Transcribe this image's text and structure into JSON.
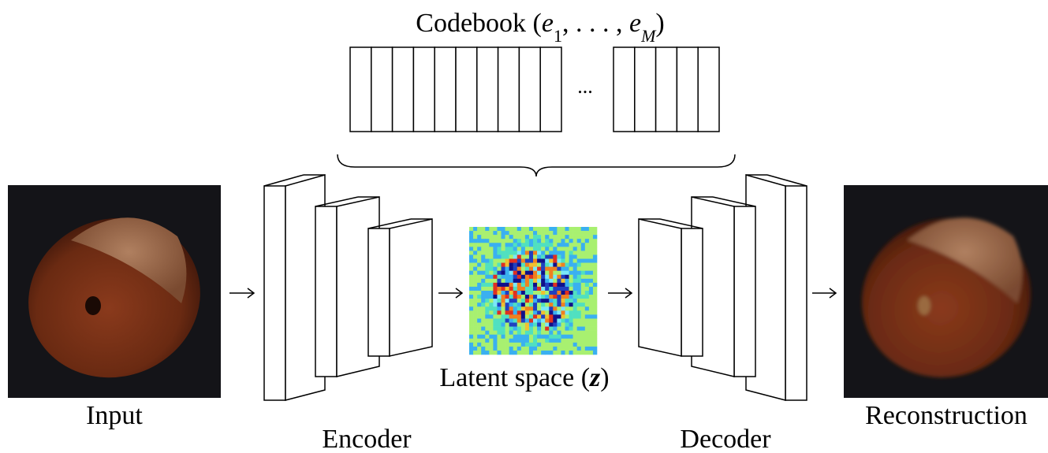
{
  "codebook": {
    "label_parts": [
      {
        "text": "Codebook (",
        "style": "roman"
      },
      {
        "text": "e",
        "style": "italic"
      },
      {
        "text": "1",
        "style": "sub"
      },
      {
        "text": ", . . . , ",
        "style": "roman"
      },
      {
        "text": "e",
        "style": "italic"
      },
      {
        "text": "M",
        "style": "sub-italic"
      },
      {
        "text": ")",
        "style": "roman"
      }
    ],
    "ellipsis": "..."
  },
  "input": {
    "label": "Input"
  },
  "encoder": {
    "label": "Encoder"
  },
  "latent": {
    "label": "Latent space (",
    "symbol": "z",
    "close": ")"
  },
  "decoder": {
    "label": "Decoder"
  },
  "output": {
    "label": "Reconstruction"
  }
}
